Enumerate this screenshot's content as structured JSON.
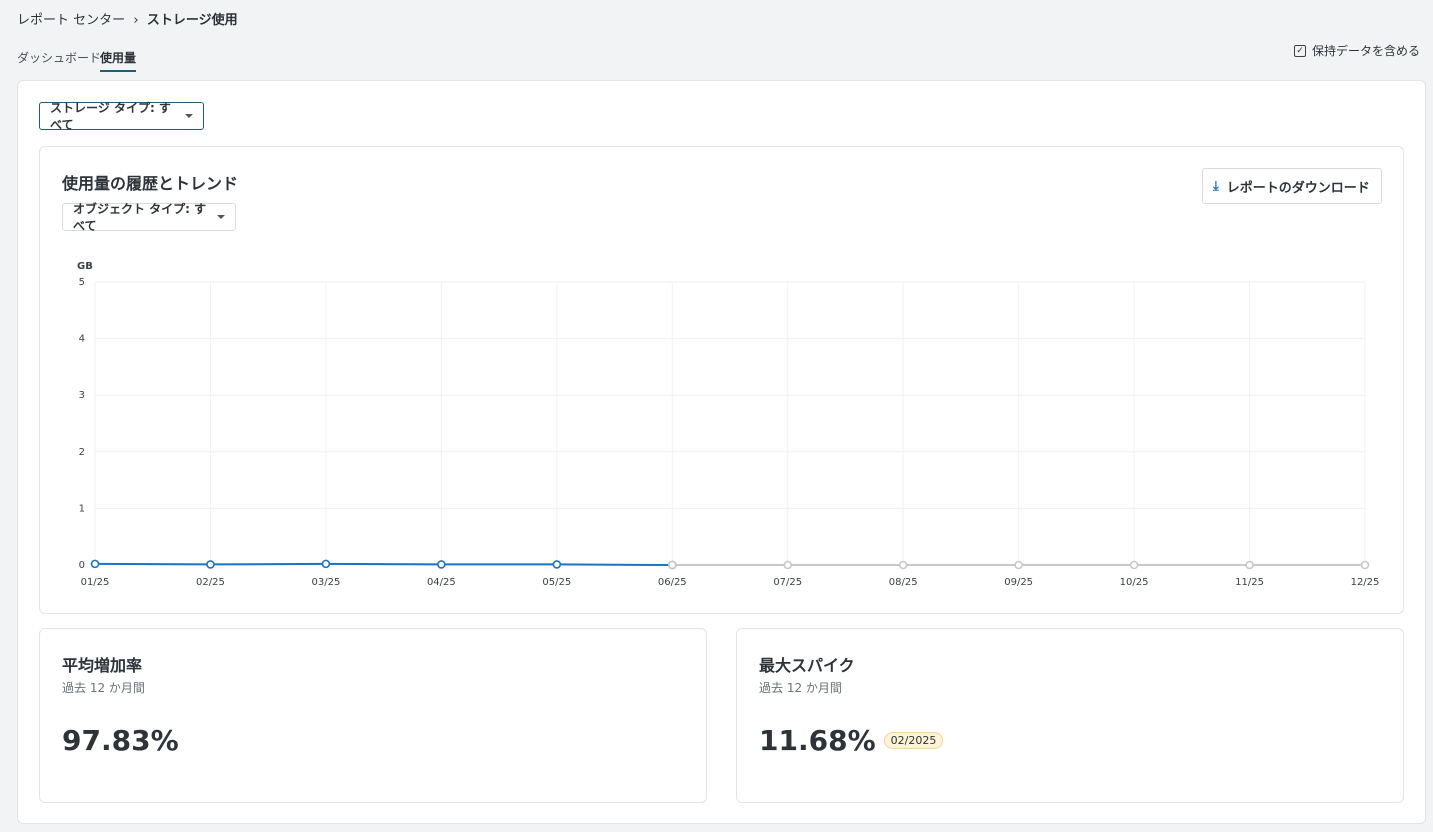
{
  "breadcrumb": {
    "parent": "レポート センター",
    "current": "ストレージ使用"
  },
  "tabs": [
    "ダッシュボード",
    "使用量"
  ],
  "retention_checkbox": "保持データを含める",
  "storage_filter": "ストレージ タイプ: すべて",
  "usage_panel": {
    "title": "使用量の履歴とトレンド",
    "object_filter": "オブジェクト タイプ: すべて",
    "download": "レポートのダウンロード"
  },
  "chart_data": {
    "type": "line",
    "y_unit": "GB",
    "categories": [
      "01/25",
      "02/25",
      "03/25",
      "04/25",
      "05/25",
      "06/25",
      "07/25",
      "08/25",
      "09/25",
      "10/25",
      "11/25",
      "12/25"
    ],
    "series": [
      {
        "color": "#1a73c8",
        "values": [
          0.02,
          0.01,
          0.02,
          0.01,
          0.01,
          0,
          null,
          null,
          null,
          null,
          null,
          null
        ]
      },
      {
        "color": "#c8c8c8",
        "values": [
          null,
          null,
          null,
          null,
          null,
          0,
          0,
          0,
          0,
          0,
          0,
          0
        ]
      }
    ],
    "ylim": [
      0,
      5
    ],
    "yticks": [
      0,
      1,
      2,
      3,
      4,
      5
    ],
    "grid": true
  },
  "stats": [
    {
      "title": "平均増加率",
      "period": "過去 12 か月間",
      "value": "97.83%"
    },
    {
      "title": "最大スパイク",
      "period": "過去 12 か月間",
      "value": "11.68%",
      "badge": "02/2025"
    }
  ]
}
